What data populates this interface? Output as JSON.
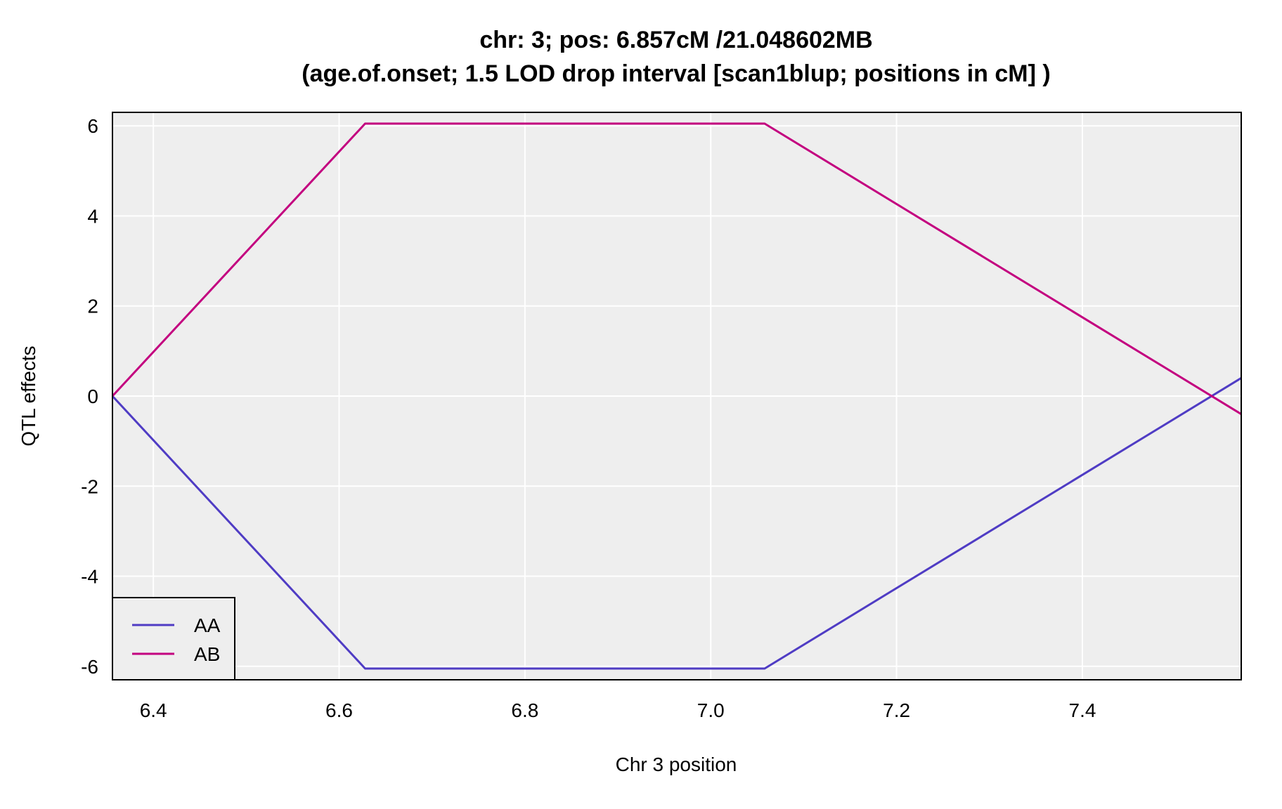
{
  "chart_data": {
    "type": "line",
    "title_line1": "chr: 3; pos: 6.857cM /21.048602MB",
    "title_line2": "(age.of.onset; 1.5 LOD drop interval [scan1blup; positions in cM] )",
    "xlabel": "Chr 3 position",
    "ylabel": "QTL effects",
    "xlim": [
      6.356,
      7.571
    ],
    "ylim": [
      -6.3,
      6.3
    ],
    "xticks": [
      6.4,
      6.6,
      6.8,
      7.0,
      7.2,
      7.4
    ],
    "xtick_labels": [
      "6.4",
      "6.6",
      "6.8",
      "7.0",
      "7.2",
      "7.4"
    ],
    "yticks": [
      -6,
      -4,
      -2,
      0,
      2,
      4,
      6
    ],
    "ytick_labels": [
      "-6",
      "-4",
      "-2",
      "0",
      "2",
      "4",
      "6"
    ],
    "grid": true,
    "background": "#eeeeee",
    "grid_color": "#ffffff",
    "legend_position": "bottom-left",
    "series": [
      {
        "name": "AA",
        "color": "#4f3cc4",
        "x": [
          6.356,
          6.628,
          7.058,
          7.571
        ],
        "y": [
          0.0,
          -6.05,
          -6.05,
          0.4
        ]
      },
      {
        "name": "AB",
        "color": "#c3007f",
        "x": [
          6.356,
          6.628,
          7.058,
          7.571
        ],
        "y": [
          0.0,
          6.05,
          6.05,
          -0.4
        ]
      }
    ]
  }
}
